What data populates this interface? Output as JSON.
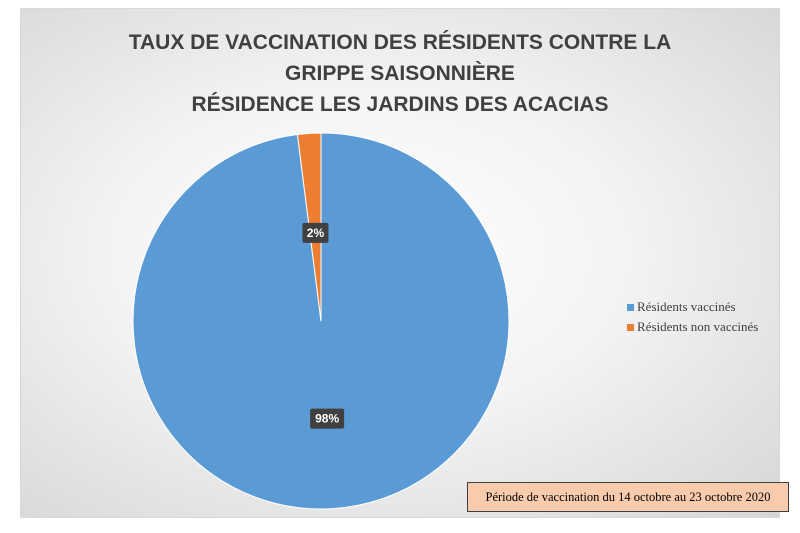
{
  "chart_data": {
    "type": "pie",
    "title_lines": [
      "TAUX DE VACCINATION DES RÉSIDENTS CONTRE LA",
      "GRIPPE SAISONNIÈRE",
      "RÉSIDENCE LES JARDINS DES ACACIAS"
    ],
    "slices": [
      {
        "label": "Résidents vaccinés",
        "value": 98,
        "display": "98%",
        "color": "#5b9bd5"
      },
      {
        "label": "Résidents non vaccinés",
        "value": 2,
        "display": "2%",
        "color": "#ed7d31"
      }
    ],
    "legend_position": "right",
    "annotation": "Période de vaccination du 14 octobre au 23 octobre 2020"
  }
}
